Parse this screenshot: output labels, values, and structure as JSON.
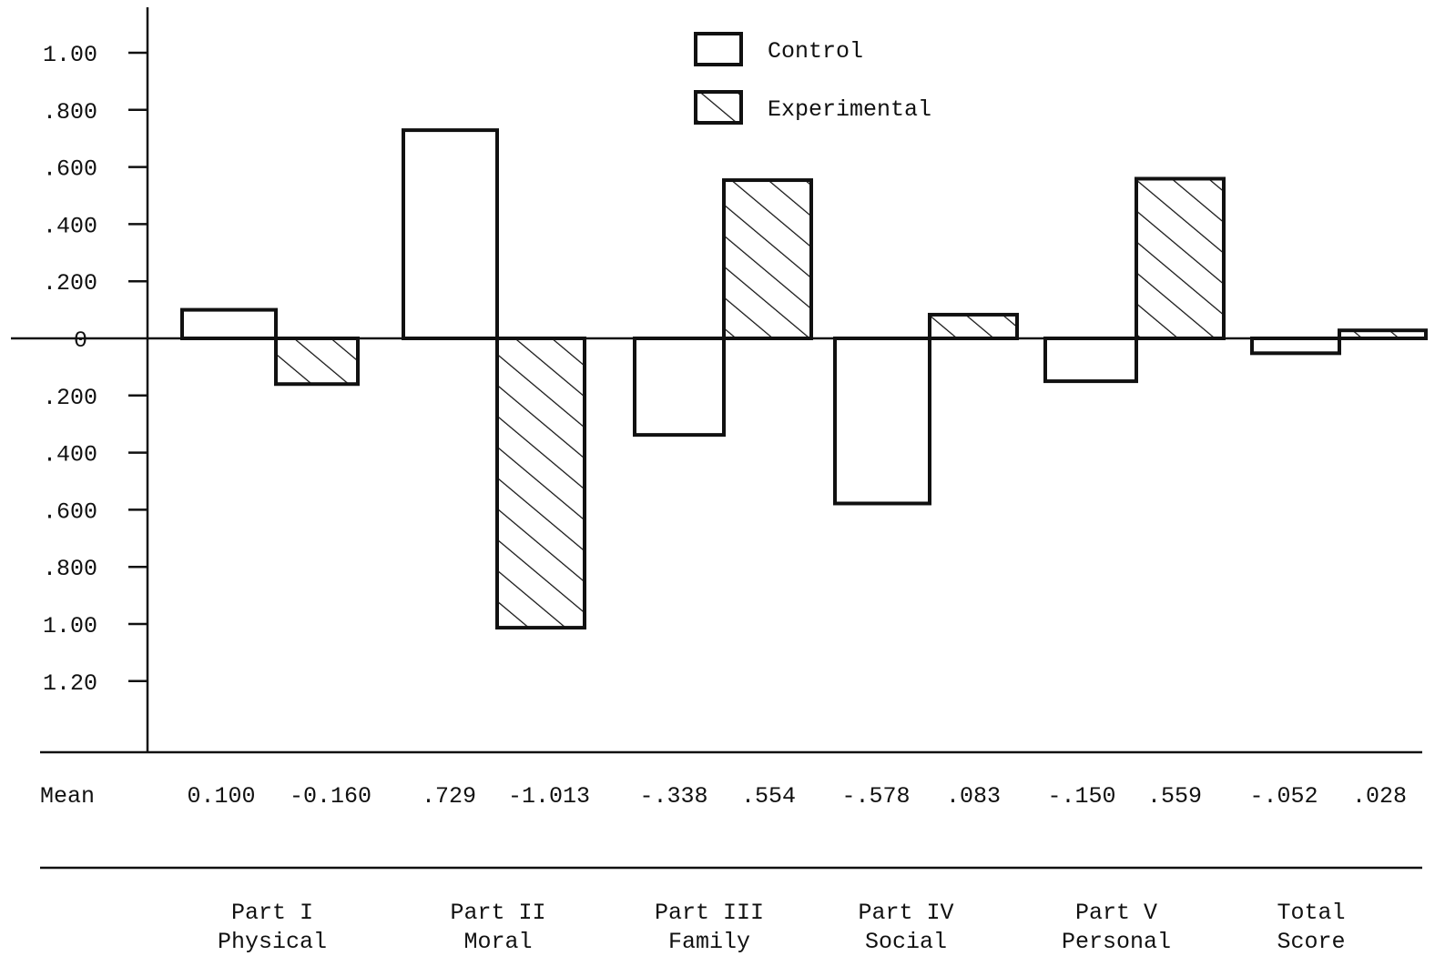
{
  "chart_data": {
    "type": "bar",
    "title": "",
    "xlabel": "",
    "ylabel": "",
    "ylim": [
      -1.4,
      1.2
    ],
    "ytick_values": [
      1.0,
      0.8,
      0.6,
      0.4,
      0.2,
      0,
      -0.2,
      -0.4,
      -0.6,
      -0.8,
      -1.0,
      -1.2
    ],
    "ytick_labels": [
      "1.00",
      ".800",
      ".600",
      ".400",
      ".200",
      "0",
      ".200",
      ".400",
      ".600",
      ".800",
      "1.00",
      "1.20"
    ],
    "categories": [
      {
        "line1": "Part I",
        "line2": "Physical"
      },
      {
        "line1": "Part II",
        "line2": "Moral"
      },
      {
        "line1": "Part III",
        "line2": "Family"
      },
      {
        "line1": "Part IV",
        "line2": "Social"
      },
      {
        "line1": "Part V",
        "line2": "Personal"
      },
      {
        "line1": "Total",
        "line2": "Score"
      }
    ],
    "series": [
      {
        "name": "Control",
        "pattern": "none",
        "values": [
          0.1,
          0.729,
          -0.338,
          -0.578,
          -0.15,
          -0.052
        ],
        "mean_labels": [
          "0.100",
          ".729",
          "-.338",
          "-.578",
          "-.150",
          "-.052"
        ]
      },
      {
        "name": "Experimental",
        "pattern": "diagonal-hatch",
        "values": [
          -0.16,
          -1.013,
          0.554,
          0.083,
          0.559,
          0.028
        ],
        "mean_labels": [
          "-0.160",
          "-1.013",
          ".554",
          ".083",
          ".559",
          ".028"
        ]
      }
    ],
    "mean_row_label": "Mean",
    "legend_position": "top-center",
    "colors": {
      "stroke": "#111111",
      "fill": "#ffffff"
    }
  }
}
